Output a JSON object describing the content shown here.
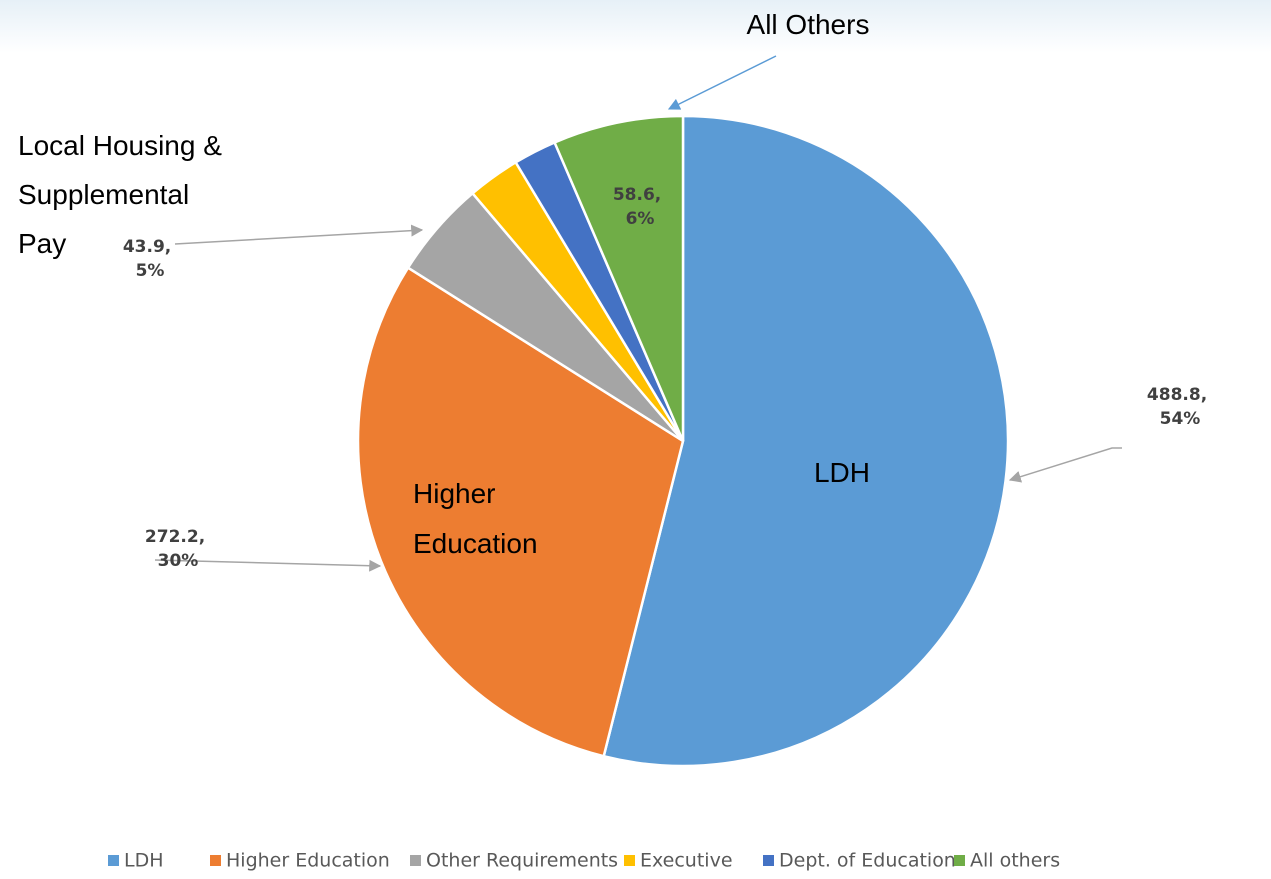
{
  "chart_data": {
    "type": "pie",
    "categories": [
      "LDH",
      "Higher Education",
      "Other Requirements",
      "Executive",
      "Dept. of Education",
      "All others"
    ],
    "values": [
      488.8,
      272.2,
      43.9,
      23.6,
      19.4,
      58.6
    ],
    "value_labels": [
      "488.8, 54%",
      "272.2, 30%",
      "43.9, 5%",
      null,
      null,
      "58.6, 6%"
    ],
    "colors": [
      "#5b9bd5",
      "#ed7d31",
      "#a5a5a5",
      "#ffc000",
      "#4472c4",
      "#70ad47"
    ],
    "legend": "bottom",
    "annotations": [
      {
        "text": "All Others"
      },
      {
        "text": "Local Housing & Supplemental Pay"
      },
      {
        "text": "LDH"
      },
      {
        "text": "Higher Education"
      }
    ]
  }
}
